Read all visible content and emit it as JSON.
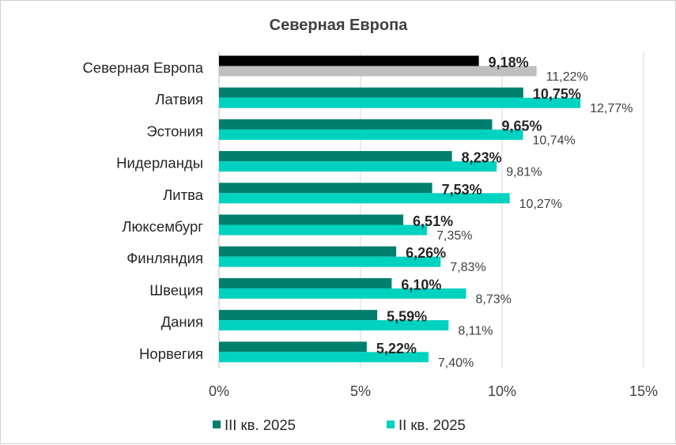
{
  "chart_data": {
    "type": "bar",
    "orientation": "horizontal",
    "title": "Северная Европа",
    "categories": [
      "Северная Европа",
      "Латвия",
      "Эстония",
      "Нидерланды",
      "Литва",
      "Люксембург",
      "Финляндия",
      "Швеция",
      "Дания",
      "Норвегия"
    ],
    "series": [
      {
        "name": "III кв. 2025",
        "values": [
          9.18,
          10.75,
          9.65,
          8.23,
          7.53,
          6.51,
          6.26,
          6.1,
          5.59,
          5.22
        ],
        "labels": [
          "9,18%",
          "10,75%",
          "9,65%",
          "8,23%",
          "7,53%",
          "6,51%",
          "6,26%",
          "6,10%",
          "5,59%",
          "5,22%"
        ],
        "color": "#007f6e",
        "highlight_color": "#000000"
      },
      {
        "name": "II кв. 2025",
        "values": [
          11.22,
          12.77,
          10.74,
          9.81,
          10.27,
          7.35,
          7.83,
          8.73,
          8.11,
          7.4
        ],
        "labels": [
          "11,22%",
          "12,77%",
          "10,74%",
          "9,81%",
          "10,27%",
          "7,35%",
          "7,83%",
          "8,73%",
          "8,11%",
          "7,40%"
        ],
        "color": "#00d2c0",
        "highlight_color": "#bfbfbf"
      }
    ],
    "highlight_category_index": 0,
    "xlim": [
      0,
      15
    ],
    "xticks": [
      0,
      5,
      10,
      15
    ],
    "xtick_labels": [
      "0%",
      "5%",
      "10%",
      "15%"
    ],
    "grid": "vertical",
    "legend_position": "bottom"
  }
}
